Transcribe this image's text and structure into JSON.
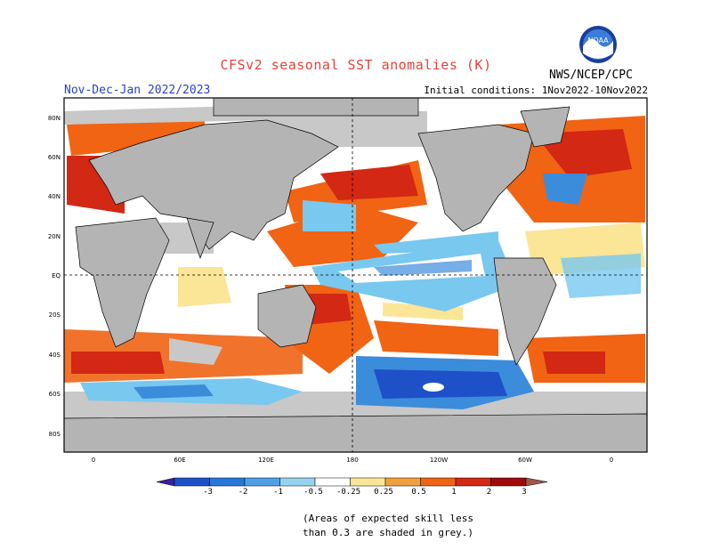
{
  "header": {
    "title": "CFSv2 seasonal SST anomalies (K)",
    "period": "Nov-Dec-Jan 2022/2023",
    "initial_conditions": "Initial conditions: 1Nov2022-10Nov2022",
    "org": "NWS/NCEP/CPC",
    "logo_text": "NOAA"
  },
  "map": {
    "lat_ticks": [
      "80N",
      "60N",
      "40N",
      "20N",
      "EQ",
      "20S",
      "40S",
      "60S",
      "80S"
    ],
    "lon_ticks": [
      "0",
      "60E",
      "120E",
      "180",
      "120W",
      "60W",
      "0"
    ],
    "colors": {
      "land": "#b4b4b4",
      "ocean_neutral": "#ffffff",
      "skill_grey": "#c8c8c8",
      "blue_dark": "#1e50c8",
      "blue_mid": "#3c8cdc",
      "blue_light": "#78c8f0",
      "orange": "#f06414",
      "red": "#d22814",
      "yellow": "#fae696"
    }
  },
  "colorbar": {
    "labels": [
      "-3",
      "-2",
      "-1",
      "-0.5",
      "-0.25",
      "0.25",
      "0.5",
      "1",
      "2",
      "3"
    ],
    "colors": [
      "#3c1ea0",
      "#1e50c8",
      "#2878dc",
      "#50a0e6",
      "#96d2f0",
      "#ffffff",
      "#fae696",
      "#f0a03c",
      "#f06414",
      "#d22814",
      "#a00a0a",
      "#a05a4b"
    ]
  },
  "note": {
    "line1": "(Areas of expected skill less",
    "line2": "than 0.3 are shaded in grey.)"
  }
}
